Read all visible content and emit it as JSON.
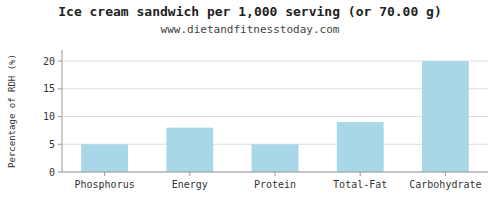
{
  "chart_data": {
    "type": "bar",
    "title": "Ice cream sandwich per 1,000 serving (or 70.00 g)",
    "subtitle": "www.dietandfitnesstoday.com",
    "categories": [
      "Phosphorus",
      "Energy",
      "Protein",
      "Total-Fat",
      "Carbohydrate"
    ],
    "values": [
      5,
      8,
      5,
      9,
      20
    ],
    "color": "#a8d8e8",
    "ylabel": "Percentage of RDH (%)",
    "ylim": [
      0,
      22
    ],
    "yticks": [
      0,
      5,
      10,
      15,
      20
    ],
    "grid": true
  }
}
